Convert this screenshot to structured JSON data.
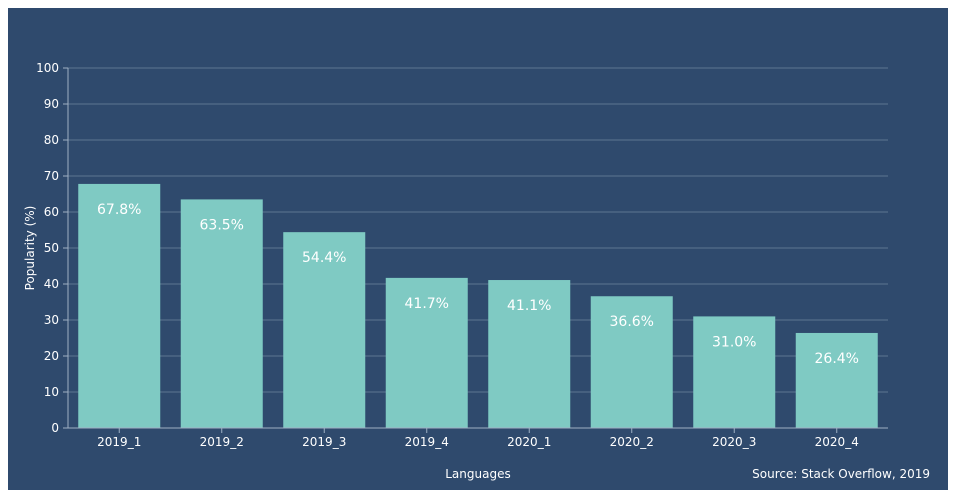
{
  "chart_data": {
    "type": "bar",
    "categories": [
      "2019_1",
      "2019_2",
      "2019_3",
      "2019_4",
      "2020_1",
      "2020_2",
      "2020_3",
      "2020_4"
    ],
    "values": [
      67.8,
      63.5,
      54.4,
      41.7,
      41.1,
      36.6,
      31.0,
      26.4
    ],
    "value_labels": [
      "67.8%",
      "63.5%",
      "54.4%",
      "41.7%",
      "41.1%",
      "36.6%",
      "31.0%",
      "26.4%"
    ],
    "xlabel": "Languages",
    "ylabel": "Popularity (%)",
    "ylim": [
      0,
      100
    ],
    "yticks": [
      "0",
      "10",
      "20",
      "30",
      "40",
      "50",
      "60",
      "70",
      "80",
      "90",
      "100"
    ],
    "grid": true,
    "source": "Source: Stack Overflow, 2019"
  },
  "colors": {
    "background": "#2f4a6d",
    "bar": "#7fcac3",
    "grid": "#5d7591",
    "axis": "#9fb0c4",
    "text": "#ffffff"
  }
}
